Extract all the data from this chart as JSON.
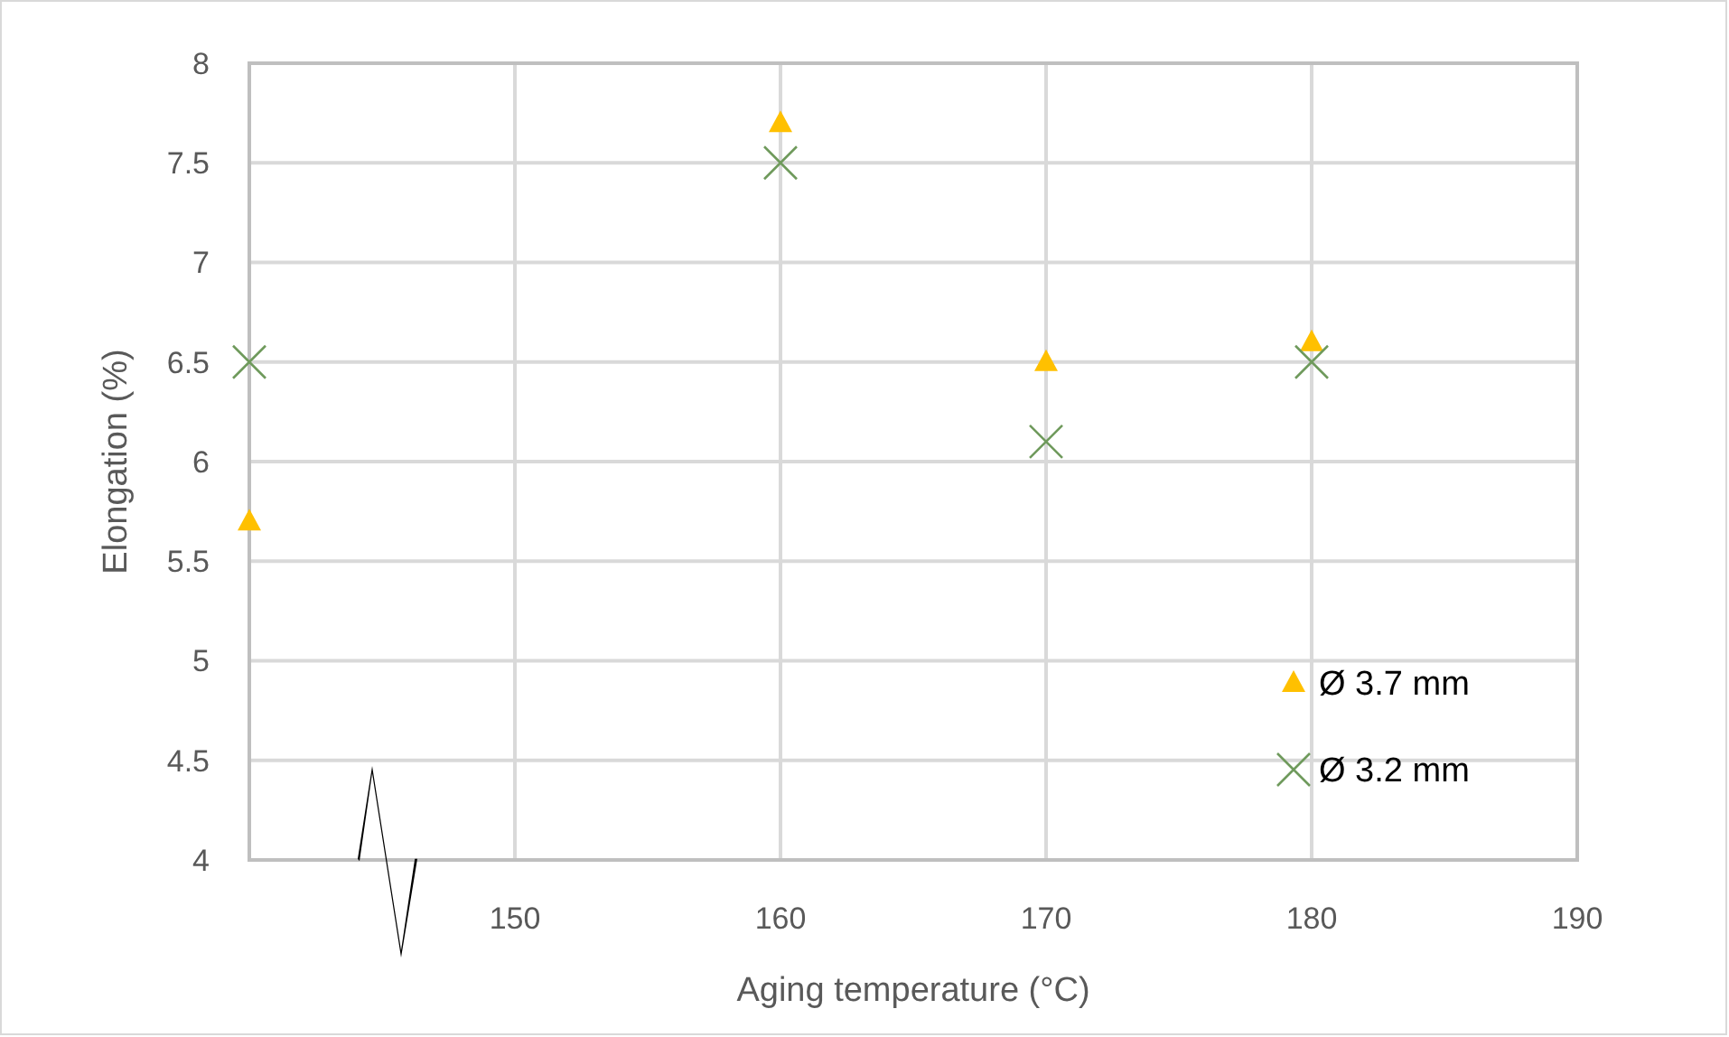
{
  "chart_data": {
    "type": "scatter",
    "xlabel": "Aging temperature (°C)",
    "ylabel": "Elongation (%)",
    "xlim": [
      140,
      190
    ],
    "xticks": [
      {
        "value": 140,
        "label": null
      },
      150,
      160,
      170,
      180,
      190
    ],
    "ylim": [
      4,
      8
    ],
    "yticks": [
      4,
      4.5,
      5,
      5.5,
      6,
      6.5,
      7,
      7.5,
      8
    ],
    "grid": true,
    "legend": "bottom right",
    "series": [
      {
        "name": "Ø 3.7 mm",
        "color": "#ffc000",
        "marker": "triangle",
        "x": [
          140,
          160,
          170,
          180
        ],
        "values": [
          5.7,
          7.7,
          6.5,
          6.6
        ]
      },
      {
        "name": "Ø 3.2 mm",
        "color": "#6f9a5c",
        "marker": "cross",
        "x": [
          140,
          160,
          170,
          180
        ],
        "values": [
          6.5,
          7.5,
          6.1,
          6.5
        ]
      }
    ]
  }
}
